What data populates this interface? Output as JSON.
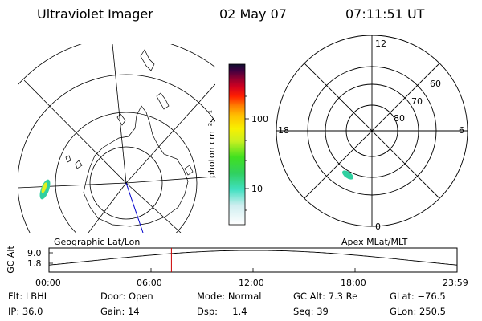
{
  "header": {
    "instrument": "Ultraviolet Imager",
    "date": "02 May 07",
    "time": "07:11:51 UT"
  },
  "colorbar": {
    "unit_label": "photon cm⁻²s⁻¹",
    "ticks": [
      "100",
      "10"
    ]
  },
  "geo_plot": {
    "label": "Geographic Lat/Lon"
  },
  "mag_plot": {
    "label": "Apex MLat/MLT",
    "mlt_labels": {
      "top": "12",
      "left": "18",
      "right": "6",
      "bottom": "0"
    },
    "lat_labels": [
      "60",
      "70",
      "80"
    ]
  },
  "altitude_chart": {
    "ylabel": "GC Alt",
    "yticks": [
      "9.0",
      "1.8"
    ],
    "xticks": [
      "00:00",
      "06:00",
      "12:00",
      "18:00",
      "23:59"
    ],
    "current_time_hours": 7.2,
    "marker_color": "#cc0000"
  },
  "info": {
    "flt": "Flt: LBHL",
    "ip": "IP: 36.0",
    "door": "Door: Open",
    "gain": "Gain: 14",
    "mode": "Mode: Normal",
    "dsp": "Dsp:     1.4",
    "gcalt": "GC Alt: 7.3 Re",
    "seq": "Seq: 39",
    "glat": "GLat: −76.5",
    "glon": "GLon: 250.5"
  }
}
